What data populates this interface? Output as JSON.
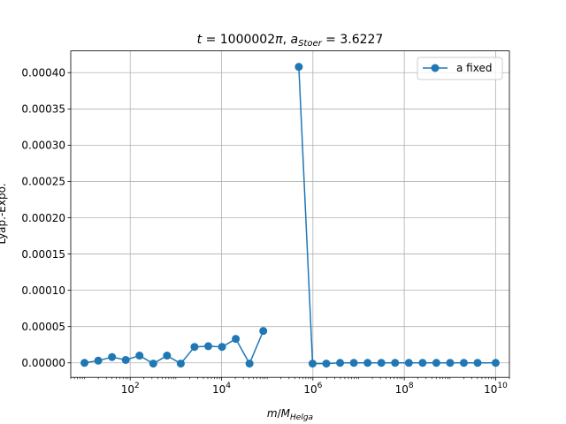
{
  "chart_data": {
    "type": "line",
    "title": "t = 1000002π, a_Stoer = 3.6227",
    "xlabel": "m/M_Helga",
    "ylabel": "Lyap.-Expo.",
    "xscale": "log",
    "xlim": [
      5,
      20000000000
    ],
    "ylim": [
      -2e-05,
      0.00043
    ],
    "grid": true,
    "legend_position": "top-right",
    "x_ticks": [
      {
        "value": 100,
        "base": "10",
        "exp": "2"
      },
      {
        "value": 10000,
        "base": "10",
        "exp": "4"
      },
      {
        "value": 1000000,
        "base": "10",
        "exp": "6"
      },
      {
        "value": 100000000,
        "base": "10",
        "exp": "8"
      },
      {
        "value": 10000000000,
        "base": "10",
        "exp": "10"
      }
    ],
    "y_ticks": [
      {
        "value": 0.0,
        "label": "0.00000"
      },
      {
        "value": 5e-05,
        "label": "0.00005"
      },
      {
        "value": 0.0001,
        "label": "0.00010"
      },
      {
        "value": 0.00015,
        "label": "0.00015"
      },
      {
        "value": 0.0002,
        "label": "0.00020"
      },
      {
        "value": 0.00025,
        "label": "0.00025"
      },
      {
        "value": 0.0003,
        "label": "0.00030"
      },
      {
        "value": 0.00035,
        "label": "0.00035"
      },
      {
        "value": 0.0004,
        "label": "0.00040"
      }
    ],
    "series": [
      {
        "name": "a fixed",
        "color": "#1f77b4",
        "marker": "circle",
        "x": [
          10,
          20,
          40,
          80,
          160,
          320,
          640,
          1280,
          2560,
          5120,
          10240,
          20480,
          40960,
          81920,
          491520,
          983040,
          1966080,
          3932160,
          7864320,
          15728640,
          31457280,
          62914560,
          125829120,
          251658240,
          503316480,
          1006632960,
          2013265920,
          4026531840,
          10000000000
        ],
        "y": [
          0.0,
          3e-06,
          8e-06,
          4e-06,
          1e-05,
          -1e-06,
          1e-05,
          -1e-06,
          2.2e-05,
          2.3e-05,
          2.2e-05,
          3.3e-05,
          -1e-06,
          4.4e-05,
          0.000408,
          -1e-06,
          -1e-06,
          0.0,
          0.0,
          0.0,
          0.0,
          0.0,
          0.0,
          0.0,
          0.0,
          0.0,
          0.0,
          0.0,
          0.0
        ],
        "breaks": [
          14
        ]
      }
    ]
  }
}
